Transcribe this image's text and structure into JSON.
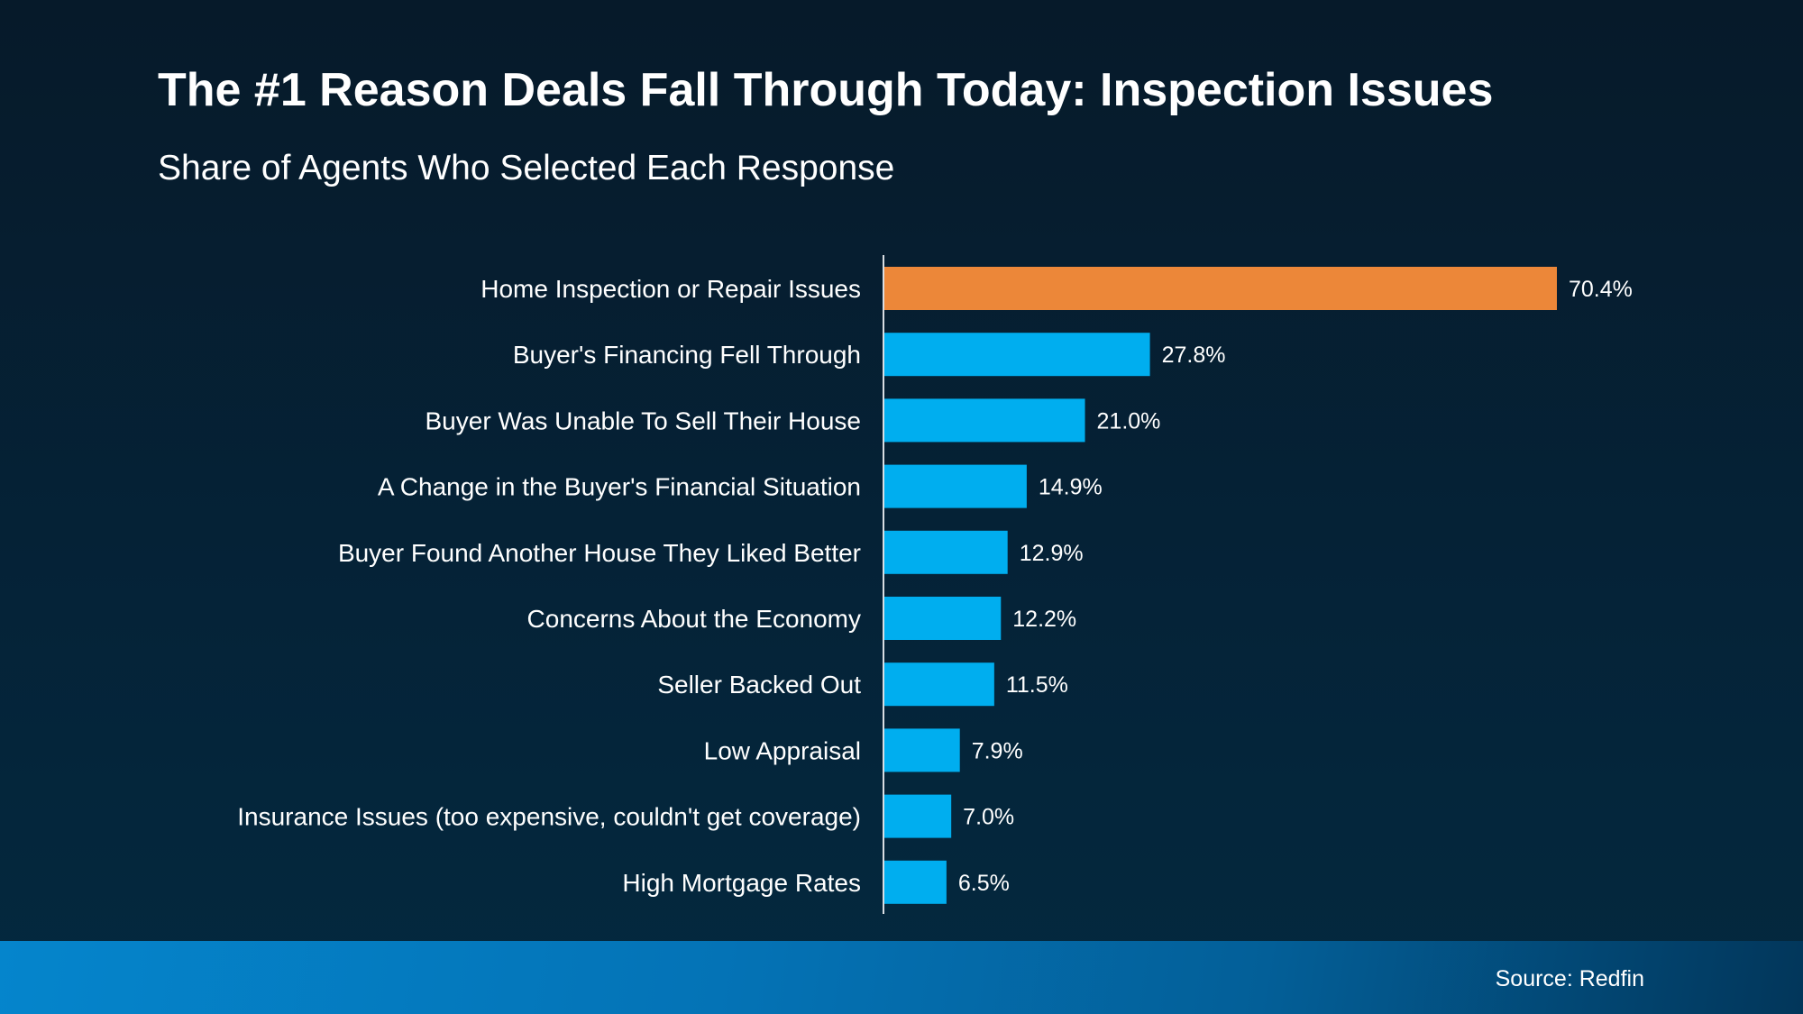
{
  "chart_data": {
    "type": "bar",
    "orientation": "horizontal",
    "title": "The #1 Reason Deals Fall Through Today: Inspection Issues",
    "subtitle": "Share of Agents Who Selected Each Response",
    "categories": [
      "Home Inspection or Repair Issues",
      "Buyer's Financing Fell Through",
      "Buyer Was Unable To Sell Their House",
      "A Change in the Buyer's Financial Situation",
      "Buyer Found Another House They Liked Better",
      "Concerns About the Economy",
      "Seller Backed Out",
      "Low Appraisal",
      "Insurance Issues (too expensive, couldn't get coverage)",
      "High Mortgage Rates"
    ],
    "values": [
      70.4,
      27.8,
      21.0,
      14.9,
      12.9,
      12.2,
      11.5,
      7.9,
      7.0,
      6.5
    ],
    "value_labels": [
      "70.4%",
      "27.8%",
      "21.0%",
      "14.9%",
      "12.9%",
      "12.2%",
      "11.5%",
      "7.9%",
      "7.0%",
      "6.5%"
    ],
    "unit": "%",
    "xlim": [
      0,
      70.4
    ],
    "grid": false,
    "colors": {
      "highlight": "#ec8739",
      "default": "#00aeef"
    }
  },
  "footer": {
    "source": "Source: Redfin"
  }
}
